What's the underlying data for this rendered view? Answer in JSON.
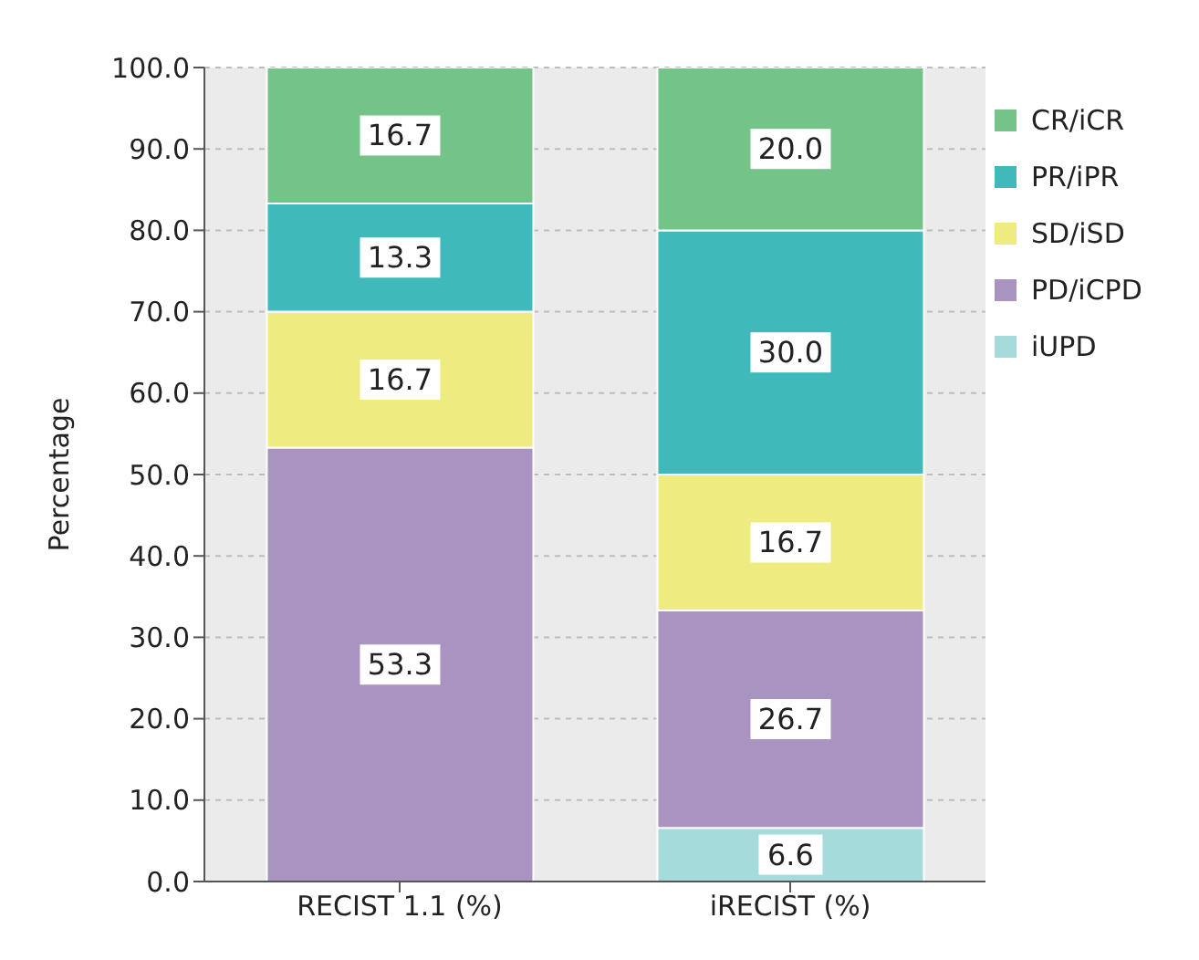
{
  "chart_data": {
    "type": "bar",
    "stacked": true,
    "ylabel": "Percentage",
    "categories": [
      "RECIST 1.1 (%)",
      "iRECIST (%)"
    ],
    "series": [
      {
        "name": "iUPD",
        "color": "#a6dbdb",
        "values": [
          null,
          6.6
        ],
        "value_labels": [
          null,
          "6.6"
        ]
      },
      {
        "name": "PD/iCPD",
        "color": "#a993c1",
        "values": [
          53.3,
          26.7
        ],
        "value_labels": [
          "53.3",
          "26.7"
        ]
      },
      {
        "name": "SD/iSD",
        "color": "#eeeb80",
        "values": [
          16.7,
          16.7
        ],
        "value_labels": [
          "16.7",
          "16.7"
        ]
      },
      {
        "name": "PR/iPR",
        "color": "#40b9ba",
        "values": [
          13.3,
          30.0
        ],
        "value_labels": [
          "13.3",
          "30.0"
        ]
      },
      {
        "name": "CR/iCR",
        "color": "#74c389",
        "values": [
          16.7,
          20.0
        ],
        "value_labels": [
          "16.7",
          "20.0"
        ]
      }
    ],
    "ylim": [
      0,
      100
    ],
    "yticks": [
      {
        "value": 0,
        "label": "0.0"
      },
      {
        "value": 10,
        "label": "10.0"
      },
      {
        "value": 20,
        "label": "20.0"
      },
      {
        "value": 30,
        "label": "30.0"
      },
      {
        "value": 40,
        "label": "40.0"
      },
      {
        "value": 50,
        "label": "50.0"
      },
      {
        "value": 60,
        "label": "60.0"
      },
      {
        "value": 70,
        "label": "70.0"
      },
      {
        "value": 80,
        "label": "80.0"
      },
      {
        "value": 90,
        "label": "90.0"
      },
      {
        "value": 100,
        "label": "100.0"
      }
    ],
    "grid": "y",
    "legend": "right"
  }
}
